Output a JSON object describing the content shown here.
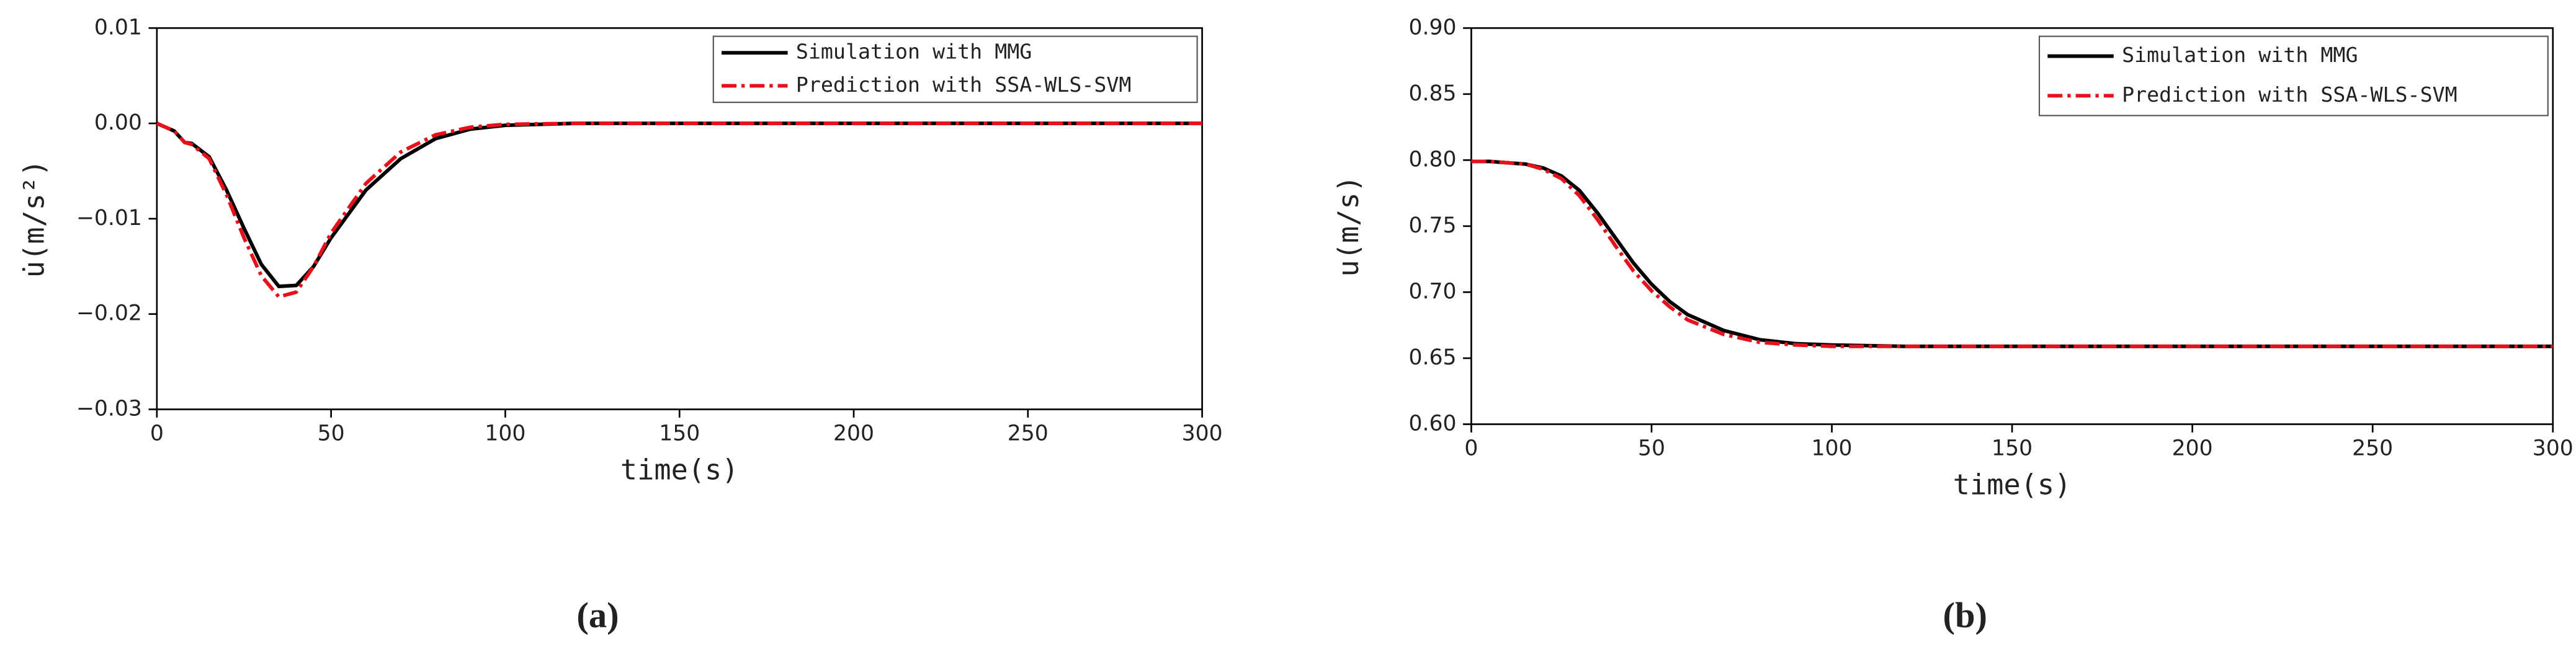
{
  "chart_data": [
    {
      "type": "line",
      "caption": "(a)",
      "xlabel": "time(s)",
      "ylabel": "u̇(m/s²)",
      "x": [
        0,
        5,
        8,
        10,
        15,
        20,
        25,
        30,
        35,
        40,
        45,
        50,
        60,
        70,
        80,
        90,
        100,
        120,
        150,
        200,
        250,
        300
      ],
      "series": [
        {
          "name": "Simulation with MMG",
          "color": "#000000",
          "linestyle": "solid",
          "values": [
            0,
            -0.0008,
            -0.002,
            -0.0021,
            -0.0035,
            -0.007,
            -0.011,
            -0.0148,
            -0.0171,
            -0.017,
            -0.015,
            -0.012,
            -0.007,
            -0.0037,
            -0.0016,
            -0.0006,
            -0.0002,
            0,
            0,
            0,
            0,
            0
          ]
        },
        {
          "name": "Prediction with SSA-WLS-SVM",
          "color": "#e8101a",
          "linestyle": "dashdot",
          "values": [
            0,
            -0.0008,
            -0.002,
            -0.0022,
            -0.0037,
            -0.0075,
            -0.012,
            -0.016,
            -0.0182,
            -0.0177,
            -0.015,
            -0.0115,
            -0.0063,
            -0.003,
            -0.0012,
            -0.0004,
            -0.0001,
            0,
            0,
            0,
            0,
            0
          ]
        }
      ],
      "xlim": [
        0,
        300
      ],
      "xticks": [
        0,
        50,
        100,
        150,
        200,
        250,
        300
      ],
      "ylim": [
        -0.03,
        0.01
      ],
      "yticks": [
        {
          "value": -0.03,
          "label": "−0.03"
        },
        {
          "value": -0.02,
          "label": "−0.02"
        },
        {
          "value": -0.01,
          "label": "−0.01"
        },
        {
          "value": 0,
          "label": "0.00"
        },
        0.01
      ],
      "grid": false,
      "legend": "upper right"
    },
    {
      "type": "line",
      "caption": "(b)",
      "xlabel": "time(s)",
      "ylabel": "u(m/s)",
      "x": [
        0,
        5,
        10,
        15,
        20,
        25,
        30,
        35,
        40,
        45,
        50,
        55,
        60,
        70,
        80,
        90,
        100,
        120,
        150,
        200,
        250,
        300
      ],
      "series": [
        {
          "name": "Simulation with MMG",
          "color": "#000000",
          "linestyle": "solid",
          "values": [
            0.799,
            0.799,
            0.798,
            0.797,
            0.794,
            0.788,
            0.777,
            0.76,
            0.741,
            0.722,
            0.706,
            0.693,
            0.683,
            0.671,
            0.664,
            0.661,
            0.66,
            0.659,
            0.659,
            0.659,
            0.659,
            0.659
          ]
        },
        {
          "name": "Prediction with SSA-WLS-SVM",
          "color": "#e8101a",
          "linestyle": "dashdot",
          "values": [
            0.799,
            0.799,
            0.798,
            0.797,
            0.793,
            0.786,
            0.773,
            0.755,
            0.735,
            0.716,
            0.701,
            0.689,
            0.679,
            0.668,
            0.662,
            0.66,
            0.659,
            0.659,
            0.659,
            0.659,
            0.659,
            0.659
          ]
        }
      ],
      "xlim": [
        0,
        300
      ],
      "xticks": [
        0,
        50,
        100,
        150,
        200,
        250,
        300
      ],
      "ylim": [
        0.6,
        0.9
      ],
      "yticks": [
        {
          "value": 0.6,
          "label": "0.60"
        },
        0.65,
        {
          "value": 0.7,
          "label": "0.70"
        },
        0.75,
        {
          "value": 0.8,
          "label": "0.80"
        },
        0.85,
        {
          "value": 0.9,
          "label": "0.90"
        }
      ],
      "grid": false,
      "legend": "upper right"
    }
  ]
}
